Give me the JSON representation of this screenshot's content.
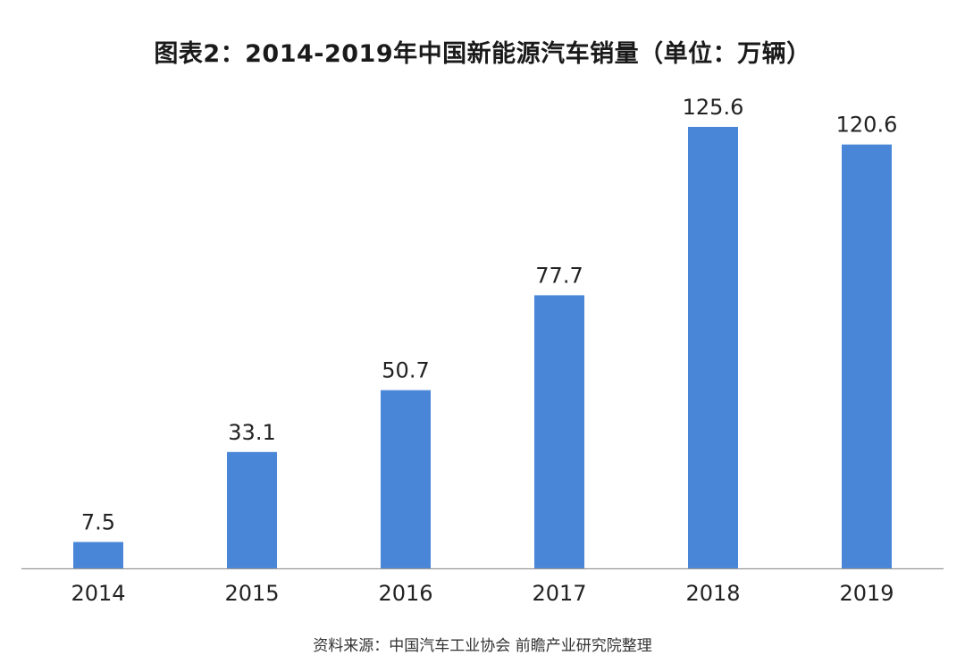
{
  "title": "图表2：2014-2019年中国新能源汽车销量（单位：万辆）",
  "source": "资料来源：中国汽车工业协会 前瞻产业研究院整理",
  "colors": {
    "bar": "#4a86d8",
    "axis": "#9a9a9a",
    "label": "#222222"
  },
  "chart_data": {
    "type": "bar",
    "categories": [
      "2014",
      "2015",
      "2016",
      "2017",
      "2018",
      "2019"
    ],
    "values": [
      7.5,
      33.1,
      50.7,
      77.7,
      125.6,
      120.6
    ],
    "value_labels": [
      "7.5",
      "33.1",
      "50.7",
      "77.7",
      "125.6",
      "120.6"
    ],
    "title": "图表2：2014-2019年中国新能源汽车销量（单位：万辆）",
    "xlabel": "",
    "ylabel": "",
    "ylim": [
      0,
      125.6
    ],
    "grid": false,
    "legend": "none",
    "data_labels": "above-bars"
  }
}
